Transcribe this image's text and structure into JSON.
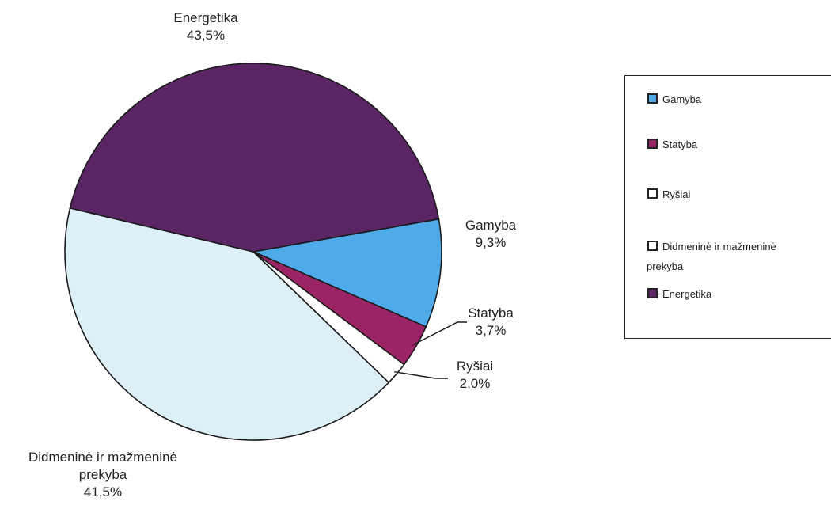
{
  "chart_data": {
    "type": "pie",
    "slices": [
      {
        "label": "Gamyba",
        "value": 9.3,
        "value_label": "9,3%",
        "color": "#4faaea"
      },
      {
        "label": "Statyba",
        "value": 3.7,
        "value_label": "3,7%",
        "color": "#9a2466"
      },
      {
        "label": "Ryšiai",
        "value": 2.0,
        "value_label": "2,0%",
        "color": "#ffffff"
      },
      {
        "label": "Didmeninė ir mažmeninė prekyba",
        "value": 41.5,
        "value_label": "41,5%",
        "color": "#ddf0f8"
      },
      {
        "label": "Energetika",
        "value": 43.5,
        "value_label": "43,5%",
        "color": "#5b2565"
      }
    ],
    "legend": {
      "placement": "right",
      "items": [
        {
          "label": "Gamyba",
          "color": "#4faaea"
        },
        {
          "label": "Statyba",
          "color": "#9a2466"
        },
        {
          "label": "Ryšiai",
          "color": "#ffffff"
        },
        {
          "label_line1": "Didmeninė ir mažmeninė",
          "label_line2": "prekyba",
          "color": "#ffffff"
        },
        {
          "label": "Energetika",
          "color": "#5b2565"
        }
      ]
    }
  }
}
